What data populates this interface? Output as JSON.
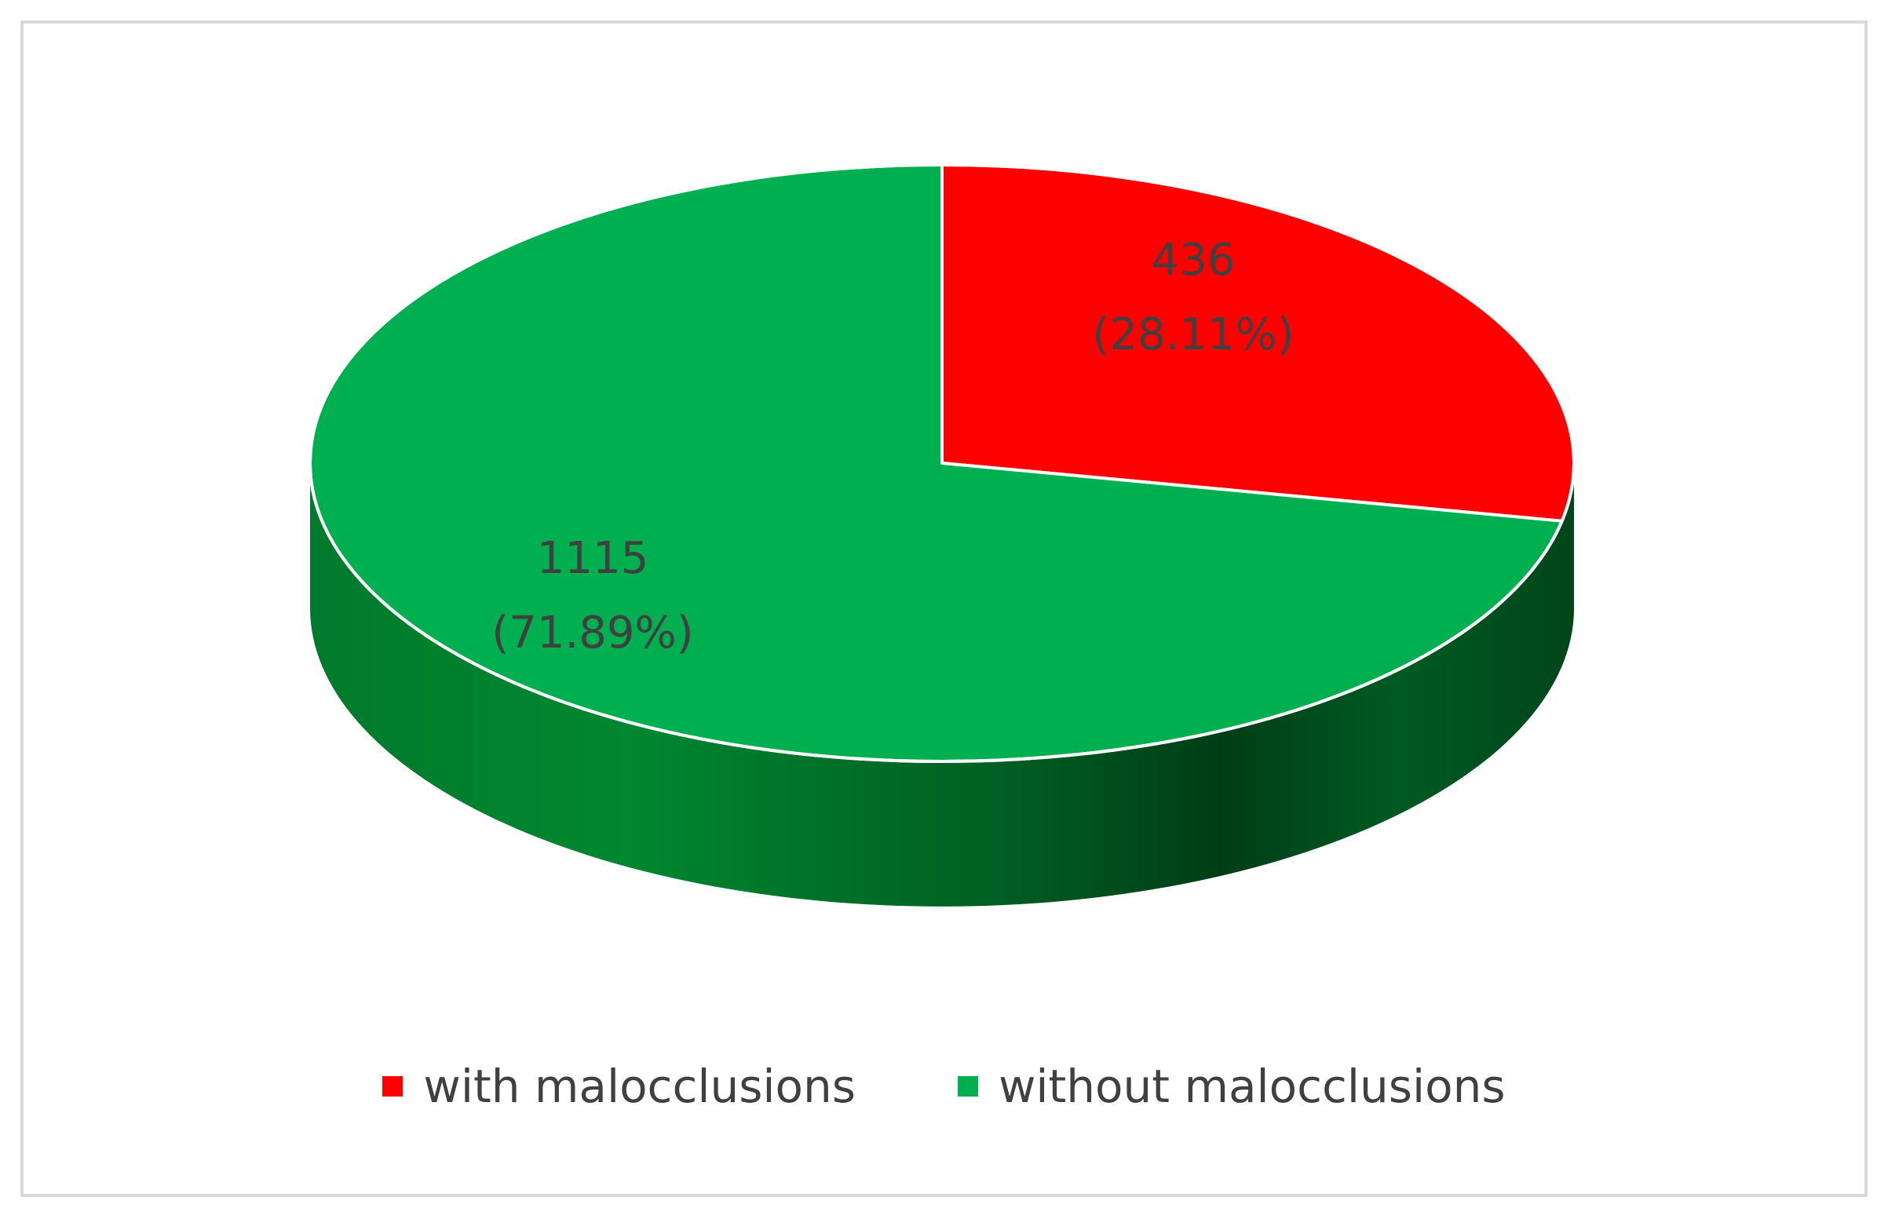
{
  "chart_data": {
    "type": "pie",
    "title": "",
    "slices": [
      {
        "name": "with malocclusions",
        "value": 436,
        "percent": 28.11,
        "value_label": "436",
        "percent_label": "(28.11%)",
        "color": "#ff0000"
      },
      {
        "name": "without malocclusions",
        "value": 1115,
        "percent": 71.89,
        "value_label": "1115",
        "percent_label": "(71.89%)",
        "color": "#00b050"
      }
    ],
    "style": "3d",
    "legend_position": "bottom"
  }
}
